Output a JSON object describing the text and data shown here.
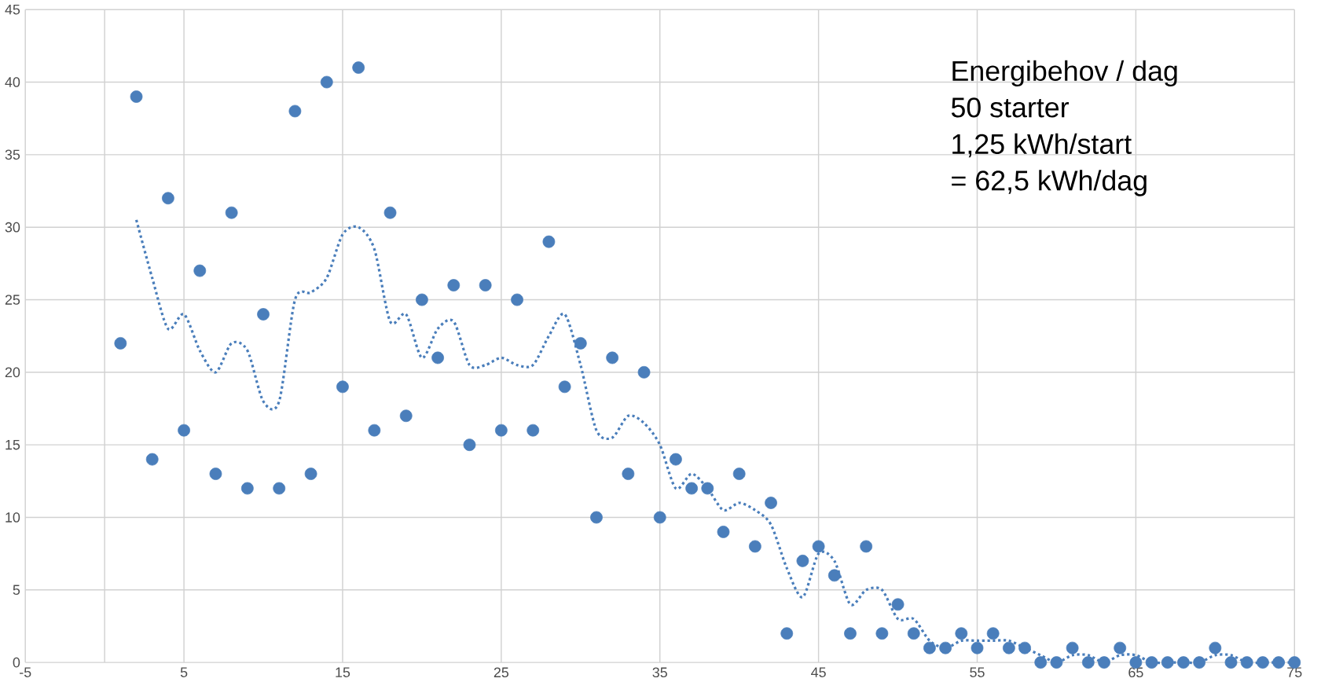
{
  "chart_data": {
    "type": "scatter",
    "xlim": [
      -5,
      75
    ],
    "ylim": [
      0,
      45
    ],
    "xticks": [
      -5,
      5,
      15,
      25,
      35,
      45,
      55,
      65,
      75
    ],
    "yticks": [
      0,
      5,
      10,
      15,
      20,
      25,
      30,
      35,
      40,
      45
    ],
    "grid": true,
    "annotations": [
      "Energibehov / dag",
      "50 starter",
      "1,25 kWh/start",
      "= 62,5 kWh/dag"
    ],
    "series": [
      {
        "color": "#4a7ebb",
        "marker": "circle",
        "x": [
          1,
          2,
          3,
          4,
          5,
          6,
          7,
          8,
          9,
          10,
          11,
          12,
          13,
          14,
          15,
          16,
          17,
          18,
          19,
          20,
          21,
          22,
          23,
          24,
          25,
          26,
          27,
          28,
          29,
          30,
          31,
          32,
          33,
          34,
          35,
          36,
          37,
          38,
          39,
          40,
          41,
          42,
          43,
          44,
          45,
          46,
          47,
          48,
          49,
          50,
          51,
          52,
          53,
          54,
          55,
          56,
          57,
          58,
          59,
          60,
          61,
          62,
          63,
          64,
          65,
          66,
          67,
          68,
          69,
          70,
          71,
          72,
          73,
          74,
          75
        ],
        "values": [
          22,
          39,
          14,
          32,
          16,
          27,
          13,
          31,
          12,
          24,
          12,
          38,
          13,
          40,
          19,
          41,
          16,
          31,
          17,
          25,
          21,
          26,
          15,
          26,
          16,
          25,
          16,
          29,
          19,
          22,
          10,
          21,
          13,
          20,
          10,
          14,
          12,
          12,
          9,
          13,
          8,
          11,
          2,
          7,
          8,
          6,
          2,
          8,
          2,
          4,
          2,
          1,
          1,
          2,
          1,
          2,
          1,
          1,
          0,
          0,
          1,
          0,
          0,
          1,
          0,
          0,
          0,
          0,
          0,
          1,
          0,
          0,
          0,
          0,
          0
        ]
      },
      {
        "type": "line",
        "color": "#4a7ebb",
        "marker": "none",
        "line_style": "dotted",
        "x": [
          2,
          3,
          4,
          5,
          6,
          7,
          8,
          9,
          10,
          11,
          12,
          13,
          14,
          15,
          16,
          17,
          18,
          19,
          20,
          21,
          22,
          23,
          24,
          25,
          26,
          27,
          28,
          29,
          30,
          31,
          32,
          33,
          34,
          35,
          36,
          37,
          38,
          39,
          40,
          41,
          42,
          43,
          44,
          45,
          46,
          47,
          48,
          49,
          50,
          51,
          52,
          53,
          54,
          55,
          56,
          57,
          58,
          59,
          60,
          61,
          62,
          63,
          64,
          65,
          66,
          67,
          68,
          69,
          70,
          71,
          72,
          73,
          74,
          75
        ],
        "values": [
          30.5,
          26.5,
          23,
          24,
          21.5,
          20,
          22,
          21.5,
          18,
          18,
          25,
          25.5,
          26.5,
          29.5,
          30,
          28.5,
          23.5,
          24,
          21,
          23,
          23.5,
          20.5,
          20.5,
          21,
          20.5,
          20.5,
          22.5,
          24,
          20.5,
          16,
          15.5,
          17,
          16.5,
          15,
          12,
          13,
          12,
          10.5,
          11,
          10.5,
          9.5,
          6.5,
          4.5,
          7.5,
          7,
          4,
          5,
          5,
          3,
          3,
          1.5,
          1,
          1.5,
          1.5,
          1.5,
          1.5,
          1,
          0.5,
          0,
          0.5,
          0.5,
          0,
          0.5,
          0.5,
          0,
          0,
          0,
          0,
          0.5,
          0.5,
          0,
          0,
          0,
          0
        ]
      }
    ]
  }
}
